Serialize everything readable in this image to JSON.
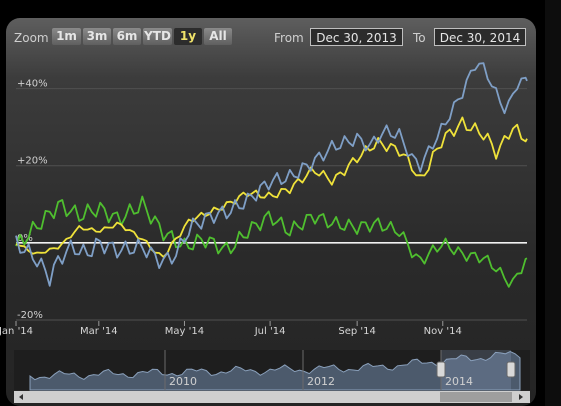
{
  "range_selector": {
    "zoom_label": "Zoom",
    "buttons": [
      "1m",
      "3m",
      "6m",
      "YTD",
      "1y",
      "All"
    ],
    "selected": "1y",
    "from_label": "From",
    "from_value": "Dec 30, 2013",
    "to_label": "To",
    "to_value": "Dec 30, 2014"
  },
  "colors": {
    "series_blue": "#7f9fc6",
    "series_yellow": "#efe23a",
    "series_green": "#4fbf2f",
    "zero_line": "#f2f2f2",
    "navigator_fill": "#4c5a6c"
  },
  "chart_data": {
    "type": "line",
    "x_unit": "date",
    "xlim": [
      "2014-01-01",
      "2014-12-31"
    ],
    "ylim": [
      -20,
      50
    ],
    "y_ticks": [
      -20,
      0,
      20,
      40
    ],
    "y_tick_labels": [
      "-20%",
      "0%",
      "+20%",
      "+40%"
    ],
    "x_ticks": [
      "2014-01-01",
      "2014-03-01",
      "2014-05-01",
      "2014-07-01",
      "2014-09-01",
      "2014-11-01"
    ],
    "x_tick_labels": [
      "Jan '14",
      "Mar '14",
      "May '14",
      "Jul '14",
      "Sep '14",
      "Nov '14"
    ],
    "grid": true,
    "legend": "none",
    "reference_line": 0,
    "series": [
      {
        "color": "blue",
        "x": [
          "2014-01-01",
          "2014-01-15",
          "2014-01-25",
          "2014-02-01",
          "2014-02-10",
          "2014-02-20",
          "2014-03-01",
          "2014-03-15",
          "2014-04-01",
          "2014-04-15",
          "2014-04-25",
          "2014-05-05",
          "2014-05-20",
          "2014-06-01",
          "2014-06-15",
          "2014-07-01",
          "2014-07-15",
          "2014-08-01",
          "2014-08-15",
          "2014-09-01",
          "2014-09-10",
          "2014-09-20",
          "2014-10-01",
          "2014-10-10",
          "2014-10-16",
          "2014-11-01",
          "2014-11-15",
          "2014-11-25",
          "2014-12-01",
          "2014-12-10",
          "2014-12-16",
          "2014-12-25",
          "2014-12-31"
        ],
        "values": [
          0,
          -4,
          -9,
          -4,
          -1,
          -3,
          0,
          -2,
          -1,
          -5,
          -3,
          4,
          7,
          8,
          11,
          16,
          17,
          21,
          25,
          27,
          25,
          29,
          28,
          22,
          20,
          30,
          39,
          47,
          45,
          38,
          34,
          42,
          42
        ]
      },
      {
        "color": "yellow",
        "x": [
          "2014-01-01",
          "2014-01-15",
          "2014-02-01",
          "2014-02-15",
          "2014-03-01",
          "2014-03-15",
          "2014-04-01",
          "2014-04-15",
          "2014-05-05",
          "2014-05-20",
          "2014-06-01",
          "2014-06-15",
          "2014-07-01",
          "2014-07-15",
          "2014-08-01",
          "2014-08-15",
          "2014-09-01",
          "2014-09-15",
          "2014-10-01",
          "2014-10-10",
          "2014-10-16",
          "2014-11-01",
          "2014-11-15",
          "2014-12-01",
          "2014-12-10",
          "2014-12-20",
          "2014-12-31"
        ],
        "values": [
          0,
          -3,
          -1,
          4,
          3,
          5,
          1,
          -4,
          6,
          8,
          10,
          13,
          12,
          14,
          19,
          16,
          22,
          26,
          24,
          20,
          16,
          27,
          31,
          28,
          23,
          30,
          27
        ]
      },
      {
        "color": "green",
        "x": [
          "2014-01-01",
          "2014-01-15",
          "2014-02-01",
          "2014-02-15",
          "2014-03-01",
          "2014-03-15",
          "2014-04-01",
          "2014-04-15",
          "2014-05-01",
          "2014-05-15",
          "2014-06-01",
          "2014-06-15",
          "2014-07-01",
          "2014-07-15",
          "2014-08-01",
          "2014-08-15",
          "2014-09-01",
          "2014-09-15",
          "2014-10-01",
          "2014-10-15",
          "2014-11-01",
          "2014-11-15",
          "2014-12-01",
          "2014-12-10",
          "2014-12-20",
          "2014-12-31"
        ],
        "values": [
          -1,
          4,
          10,
          7,
          9,
          6,
          10,
          3,
          -1,
          1,
          -2,
          3,
          7,
          3,
          7,
          5,
          4,
          5,
          3,
          -5,
          0,
          -3,
          -4,
          -7,
          -11,
          -4
        ]
      }
    ]
  },
  "navigator": {
    "year_labels": [
      "2010",
      "2012",
      "2014"
    ]
  }
}
